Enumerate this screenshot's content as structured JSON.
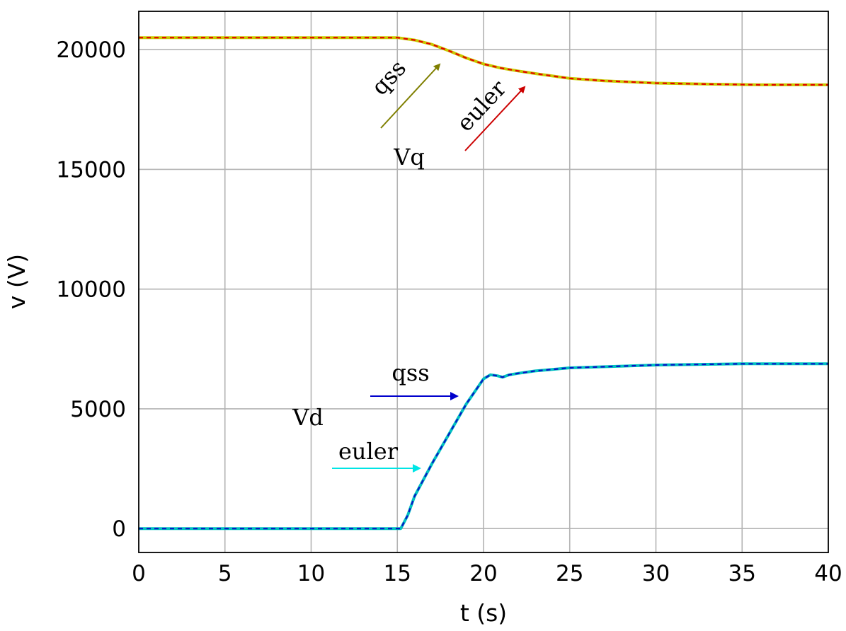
{
  "chart_data": {
    "type": "line",
    "title": "",
    "xlabel": "t (s)",
    "ylabel": "v (V)",
    "xlim": [
      0,
      40
    ],
    "ylim": [
      -1000,
      21600
    ],
    "xticks": [
      "0",
      "5",
      "10",
      "15",
      "20",
      "25",
      "30",
      "35",
      "40"
    ],
    "yticks": [
      "0",
      "5000",
      "10000",
      "15000",
      "20000"
    ],
    "grid": true,
    "series": [
      {
        "color": "#c8c800",
        "dash": false,
        "group": "Vq",
        "x": [
          0,
          15,
          16,
          17,
          18,
          19,
          20,
          21,
          22,
          23,
          24,
          25,
          27,
          30,
          33,
          36,
          40
        ],
        "y": [
          20500,
          20500,
          20400,
          20220,
          19950,
          19650,
          19400,
          19230,
          19110,
          19000,
          18900,
          18800,
          18700,
          18600,
          18560,
          18530,
          18530
        ]
      },
      {
        "color": "#e60000",
        "dash": true,
        "group": "Vq",
        "x": [
          0,
          15,
          16,
          17,
          18,
          19,
          20,
          21,
          22,
          23,
          24,
          25,
          27,
          30,
          33,
          36,
          40
        ],
        "y": [
          20500,
          20500,
          20400,
          20220,
          19950,
          19650,
          19400,
          19230,
          19110,
          19000,
          18900,
          18800,
          18700,
          18600,
          18560,
          18530,
          18530
        ]
      },
      {
        "color": "#00c0c0",
        "dash": false,
        "group": "Vd",
        "x": [
          0,
          15.2,
          15.6,
          16,
          17,
          18,
          19,
          20,
          20.4,
          20.8,
          21.1,
          21.5,
          22,
          23,
          25,
          30,
          35,
          40
        ],
        "y": [
          0,
          0,
          550,
          1350,
          2700,
          3950,
          5200,
          6250,
          6420,
          6380,
          6320,
          6420,
          6480,
          6580,
          6710,
          6830,
          6880,
          6880
        ]
      },
      {
        "color": "#0a10c8",
        "dash": true,
        "group": "Vd",
        "x": [
          0,
          15.2,
          15.6,
          16,
          17,
          18,
          19,
          20,
          20.4,
          20.8,
          21.1,
          21.5,
          22,
          23,
          25,
          30,
          35,
          40
        ],
        "y": [
          0,
          0,
          550,
          1350,
          2700,
          3950,
          5200,
          6250,
          6420,
          6380,
          6320,
          6420,
          6480,
          6580,
          6710,
          6830,
          6880,
          6880
        ]
      }
    ],
    "annotations": {
      "vq_label": "Vq",
      "vd_label": "Vd",
      "vq_qss": "qss",
      "vq_euler": "euler",
      "vd_qss": "qss",
      "vd_euler": "euler",
      "vq_qss_color": "#7f7f00",
      "vq_euler_color": "#cc0000",
      "vd_qss_color": "#0000cc",
      "vd_euler_color": "#00e5e5"
    }
  }
}
